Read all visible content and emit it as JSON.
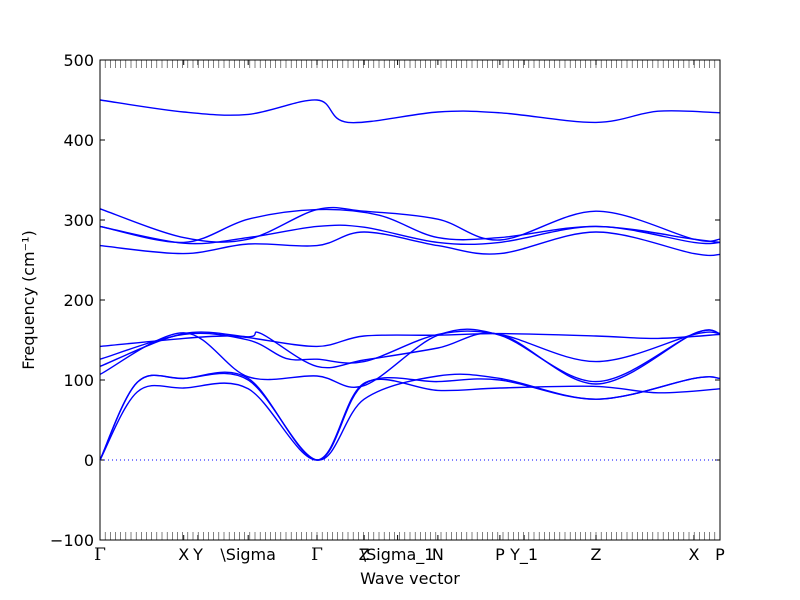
{
  "chart_data": {
    "type": "line",
    "title": "",
    "xlabel": "Wave vector",
    "ylabel": "Frequency (cm⁻¹)",
    "ylim": [
      -100,
      500
    ],
    "yticks": [
      -100,
      0,
      100,
      200,
      300,
      400,
      500
    ],
    "xlim": [
      0,
      10.0
    ],
    "grid": false,
    "legend": "none",
    "line_color": "#0000ff",
    "zero_line_color": "#0000ff",
    "high_symmetry_points": [
      {
        "label": "Γ",
        "x": 0.0
      },
      {
        "label": "X",
        "x": 1.35
      },
      {
        "label": "Y",
        "x": 1.58
      },
      {
        "label": "\\Sigma",
        "x": 2.39
      },
      {
        "label": "Γ",
        "x": 3.5
      },
      {
        "label": "Z",
        "x": 4.26
      },
      {
        "label": "\\Sigma_1",
        "x": 4.8
      },
      {
        "label": "N",
        "x": 5.45
      },
      {
        "label": "P",
        "x": 6.45
      },
      {
        "label": "Y_1",
        "x": 6.84
      },
      {
        "label": "Z",
        "x": 8.0
      },
      {
        "label": "X",
        "x": 9.58
      },
      {
        "label": "P",
        "x": 10.0
      }
    ],
    "series": [
      {
        "x": [
          0,
          1.35,
          2.39,
          3.5,
          4.0,
          5.45,
          6.45,
          8.0,
          9.0,
          10.0
        ],
        "y": [
          450,
          435,
          432,
          450,
          422,
          435,
          434,
          422,
          436,
          434
        ]
      },
      {
        "x": [
          0,
          1.35,
          2.39,
          3.5,
          4.26,
          5.45,
          6.45,
          8.0,
          9.58,
          10.0
        ],
        "y": [
          314,
          278,
          276,
          313,
          311,
          301,
          275,
          311,
          276,
          276
        ]
      },
      {
        "x": [
          0,
          1.35,
          2.39,
          3.5,
          4.5,
          5.45,
          6.45,
          8.0,
          9.58,
          10.0
        ],
        "y": [
          292,
          272,
          301,
          313,
          306,
          278,
          278,
          292,
          276,
          272
        ]
      },
      {
        "x": [
          0,
          1.35,
          2.39,
          3.5,
          4.26,
          5.45,
          6.45,
          8.0,
          9.58,
          10.0
        ],
        "y": [
          292,
          271,
          278,
          292,
          291,
          272,
          272,
          292,
          272,
          272
        ]
      },
      {
        "x": [
          0,
          1.35,
          2.39,
          3.5,
          4.26,
          5.45,
          6.45,
          8.0,
          9.58,
          10.0
        ],
        "y": [
          268,
          258,
          270,
          268,
          285,
          268,
          258,
          285,
          258,
          257
        ]
      },
      {
        "x": [
          0,
          1.35,
          2.0,
          2.39,
          3.5,
          4.26,
          5.45,
          6.45,
          8.0,
          9.0,
          10.0
        ],
        "y": [
          142,
          152,
          155,
          153,
          142,
          155,
          156,
          158,
          155,
          152,
          157
        ]
      },
      {
        "x": [
          0,
          1.35,
          2.39,
          3.0,
          3.5,
          4.26,
          5.45,
          6.45,
          8.0,
          9.58,
          10.0
        ],
        "y": [
          126,
          157,
          150,
          127,
          126,
          123,
          157,
          157,
          123,
          157,
          158
        ]
      },
      {
        "x": [
          0,
          1.35,
          2.39,
          2.6,
          3.5,
          4.26,
          5.45,
          6.45,
          8.0,
          9.58,
          10.0
        ],
        "y": [
          117,
          158,
          154,
          158,
          117,
          125,
          140,
          157,
          95,
          158,
          158
        ]
      },
      {
        "x": [
          0,
          1.35,
          2.39,
          3.5,
          4.26,
          5.45,
          6.45,
          8.0,
          9.58,
          10.0
        ],
        "y": [
          107,
          159,
          104,
          105,
          93,
          156,
          156,
          98,
          158,
          158
        ]
      },
      {
        "x": [
          0,
          0.6,
          1.35,
          2.39,
          3.5,
          4.26,
          5.45,
          6.45,
          8.0,
          9.58,
          10.0
        ],
        "y": [
          0,
          97,
          102,
          102,
          0,
          95,
          98,
          100,
          76,
          102,
          102
        ]
      },
      {
        "x": [
          0,
          0.6,
          1.35,
          2.39,
          3.5,
          4.26,
          5.45,
          6.45,
          8.0,
          9.58,
          10.0
        ],
        "y": [
          0,
          97,
          102,
          100,
          0,
          76,
          105,
          102,
          76,
          102,
          102
        ]
      },
      {
        "x": [
          0,
          0.6,
          1.35,
          2.39,
          3.5,
          4.26,
          5.45,
          6.45,
          8.0,
          9.0,
          10.0
        ],
        "y": [
          0,
          85,
          90,
          89,
          0,
          96,
          87,
          90,
          92,
          84,
          89
        ]
      }
    ]
  }
}
